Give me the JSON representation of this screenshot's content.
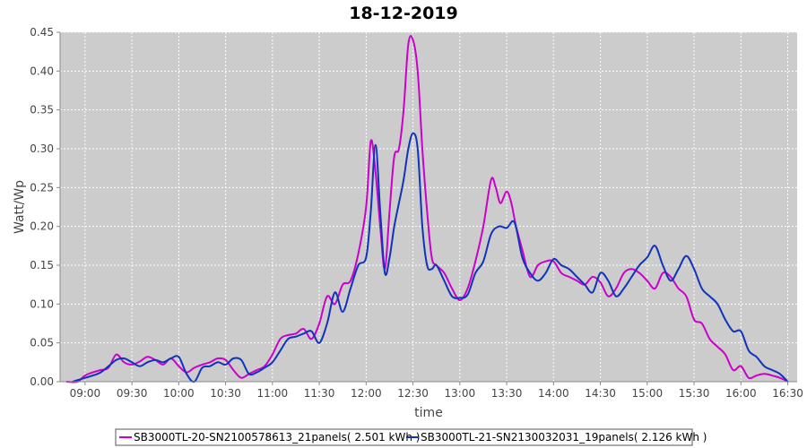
{
  "chart_data": {
    "type": "line",
    "title": "18-12-2019",
    "xlabel": "time",
    "ylabel": "Watt/Wp",
    "xlim": [
      "08:44",
      "16:36"
    ],
    "ylim": [
      0,
      0.45
    ],
    "x_ticks": [
      "09:00",
      "09:30",
      "10:00",
      "10:30",
      "11:00",
      "11:30",
      "12:00",
      "12:30",
      "13:00",
      "13:30",
      "14:00",
      "14:30",
      "15:00",
      "15:30",
      "16:00",
      "16:30"
    ],
    "y_ticks": [
      "0.00",
      "0.05",
      "0.10",
      "0.15",
      "0.20",
      "0.25",
      "0.30",
      "0.35",
      "0.40",
      "0.45"
    ],
    "grid": true,
    "legend_position": "bottom",
    "plot_background": "#cccccc",
    "series": [
      {
        "name": "SB3000TL-20-SN2100578613_21panels( 2.501 kWh )",
        "color": "#cc00cc",
        "x": [
          "08:48",
          "08:55",
          "09:00",
          "09:05",
          "09:10",
          "09:15",
          "09:20",
          "09:25",
          "09:30",
          "09:35",
          "09:40",
          "09:45",
          "09:50",
          "09:55",
          "10:00",
          "10:05",
          "10:10",
          "10:15",
          "10:20",
          "10:25",
          "10:30",
          "10:35",
          "10:40",
          "10:45",
          "10:50",
          "10:55",
          "11:00",
          "11:05",
          "11:10",
          "11:15",
          "11:20",
          "11:25",
          "11:30",
          "11:35",
          "11:40",
          "11:45",
          "11:50",
          "11:55",
          "12:00",
          "12:03",
          "12:06",
          "12:09",
          "12:12",
          "12:15",
          "12:18",
          "12:21",
          "12:24",
          "12:27",
          "12:30",
          "12:33",
          "12:36",
          "12:39",
          "12:42",
          "12:45",
          "12:50",
          "12:55",
          "13:00",
          "13:05",
          "13:10",
          "13:15",
          "13:20",
          "13:23",
          "13:26",
          "13:30",
          "13:33",
          "13:36",
          "13:40",
          "13:45",
          "13:50",
          "13:55",
          "14:00",
          "14:05",
          "14:10",
          "14:15",
          "14:20",
          "14:25",
          "14:30",
          "14:35",
          "14:40",
          "14:45",
          "14:50",
          "14:55",
          "15:00",
          "15:05",
          "15:10",
          "15:15",
          "15:20",
          "15:25",
          "15:30",
          "15:35",
          "15:40",
          "15:45",
          "15:50",
          "15:55",
          "16:00",
          "16:05",
          "16:10",
          "16:15",
          "16:20",
          "16:25",
          "16:30"
        ],
        "y": [
          0.0,
          0.0,
          0.008,
          0.012,
          0.015,
          0.018,
          0.035,
          0.025,
          0.022,
          0.026,
          0.032,
          0.028,
          0.022,
          0.03,
          0.02,
          0.012,
          0.018,
          0.022,
          0.025,
          0.03,
          0.028,
          0.015,
          0.005,
          0.01,
          0.015,
          0.02,
          0.035,
          0.055,
          0.06,
          0.062,
          0.068,
          0.055,
          0.075,
          0.11,
          0.1,
          0.125,
          0.13,
          0.165,
          0.225,
          0.31,
          0.27,
          0.2,
          0.145,
          0.22,
          0.29,
          0.3,
          0.35,
          0.435,
          0.44,
          0.4,
          0.3,
          0.22,
          0.16,
          0.15,
          0.14,
          0.12,
          0.105,
          0.12,
          0.155,
          0.2,
          0.26,
          0.25,
          0.23,
          0.245,
          0.23,
          0.2,
          0.17,
          0.135,
          0.15,
          0.155,
          0.155,
          0.14,
          0.135,
          0.13,
          0.125,
          0.135,
          0.128,
          0.11,
          0.12,
          0.14,
          0.145,
          0.14,
          0.13,
          0.12,
          0.14,
          0.135,
          0.12,
          0.11,
          0.08,
          0.075,
          0.055,
          0.045,
          0.035,
          0.015,
          0.02,
          0.005,
          0.008,
          0.01,
          0.008,
          0.005,
          0.0
        ]
      },
      {
        "name": "SB3000TL-21-SN2130032031_19panels( 2.126 kWh )",
        "color": "#1133bb",
        "x": [
          "08:52",
          "09:00",
          "09:05",
          "09:10",
          "09:15",
          "09:20",
          "09:25",
          "09:30",
          "09:35",
          "09:40",
          "09:45",
          "09:50",
          "09:55",
          "10:00",
          "10:05",
          "10:10",
          "10:15",
          "10:20",
          "10:25",
          "10:30",
          "10:35",
          "10:40",
          "10:45",
          "10:50",
          "10:55",
          "11:00",
          "11:05",
          "11:10",
          "11:15",
          "11:20",
          "11:25",
          "11:30",
          "11:35",
          "11:40",
          "11:45",
          "11:50",
          "11:55",
          "12:00",
          "12:03",
          "12:06",
          "12:09",
          "12:12",
          "12:15",
          "12:18",
          "12:21",
          "12:24",
          "12:27",
          "12:30",
          "12:33",
          "12:36",
          "12:39",
          "12:42",
          "12:45",
          "12:50",
          "12:55",
          "13:00",
          "13:05",
          "13:10",
          "13:15",
          "13:20",
          "13:25",
          "13:30",
          "13:35",
          "13:40",
          "13:45",
          "13:50",
          "13:55",
          "14:00",
          "14:05",
          "14:10",
          "14:15",
          "14:20",
          "14:25",
          "14:30",
          "14:35",
          "14:40",
          "14:45",
          "14:50",
          "14:55",
          "15:00",
          "15:05",
          "15:10",
          "15:15",
          "15:20",
          "15:25",
          "15:30",
          "15:35",
          "15:40",
          "15:45",
          "15:50",
          "15:55",
          "16:00",
          "16:05",
          "16:10",
          "16:15",
          "16:20",
          "16:25",
          "16:30"
        ],
        "y": [
          0.0,
          0.005,
          0.008,
          0.012,
          0.02,
          0.028,
          0.03,
          0.025,
          0.02,
          0.025,
          0.028,
          0.025,
          0.03,
          0.032,
          0.01,
          0.0,
          0.018,
          0.02,
          0.025,
          0.022,
          0.03,
          0.028,
          0.01,
          0.012,
          0.018,
          0.025,
          0.04,
          0.055,
          0.058,
          0.062,
          0.065,
          0.05,
          0.075,
          0.115,
          0.09,
          0.12,
          0.15,
          0.16,
          0.22,
          0.305,
          0.22,
          0.14,
          0.16,
          0.2,
          0.23,
          0.26,
          0.3,
          0.32,
          0.3,
          0.2,
          0.15,
          0.145,
          0.15,
          0.13,
          0.11,
          0.108,
          0.112,
          0.14,
          0.155,
          0.19,
          0.2,
          0.198,
          0.205,
          0.16,
          0.14,
          0.13,
          0.14,
          0.158,
          0.15,
          0.145,
          0.135,
          0.125,
          0.115,
          0.14,
          0.13,
          0.11,
          0.12,
          0.135,
          0.15,
          0.16,
          0.175,
          0.15,
          0.13,
          0.145,
          0.162,
          0.145,
          0.12,
          0.11,
          0.1,
          0.08,
          0.065,
          0.065,
          0.04,
          0.032,
          0.02,
          0.015,
          0.01,
          0.0
        ]
      }
    ]
  }
}
